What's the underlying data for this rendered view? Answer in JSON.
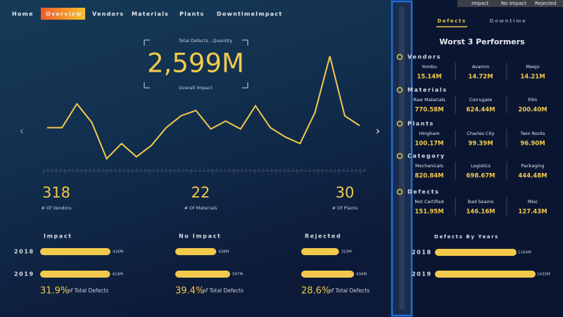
{
  "nav": {
    "tabs": [
      "Home",
      "Overview",
      "Vendors",
      "Materials",
      "Plants",
      "DowntimeImpact"
    ],
    "active": 1
  },
  "filters": [
    "Impact",
    "No Impact",
    "Rejected"
  ],
  "kpi": {
    "label": "Total Defects , Quantity",
    "value": "2,599M",
    "sublabel": "Overall Impact"
  },
  "trend": {
    "type": "line",
    "color": "#f2c94c",
    "values": [
      62,
      62,
      98,
      70,
      15,
      38,
      18,
      35,
      62,
      80,
      88,
      60,
      72,
      60,
      95,
      62,
      48,
      38,
      85,
      170,
      80,
      65
    ]
  },
  "counts": [
    {
      "value": 318,
      "label": "# Of Vendors"
    },
    {
      "value": 22,
      "label": "# Of Materials"
    },
    {
      "value": 30,
      "label": "# Of Plants"
    }
  ],
  "years": [
    "2018",
    "2019"
  ],
  "impact": [
    {
      "title": "Impact",
      "values": [
        416,
        414
      ],
      "value_labels": [
        "416M",
        "414M"
      ],
      "share": "31.9%",
      "share_label": "of Total Defects"
    },
    {
      "title": "No Impact",
      "values": [
        438,
        587
      ],
      "value_labels": [
        "438M",
        "587M"
      ],
      "share": "39.4%",
      "share_label": "of Total Defects"
    },
    {
      "title": "Rejected",
      "values": [
        310,
        434
      ],
      "value_labels": [
        "310M",
        "434M"
      ],
      "share": "28.6%",
      "share_label": "of Total Defects"
    }
  ],
  "right": {
    "tabs": [
      "Defects",
      "Downtime"
    ],
    "title": "Worst 3 Performers",
    "groups": [
      {
        "name": "Vendors",
        "items": [
          {
            "name": "Yombu",
            "value": "15.14M"
          },
          {
            "name": "Avamm",
            "value": "14.72M"
          },
          {
            "name": "Meejo",
            "value": "14.21M"
          }
        ]
      },
      {
        "name": "Materials",
        "items": [
          {
            "name": "Raw Materials",
            "value": "770.58M"
          },
          {
            "name": "Corrugate",
            "value": "624.44M"
          },
          {
            "name": "Film",
            "value": "200.40M"
          }
        ]
      },
      {
        "name": "Plants",
        "items": [
          {
            "name": "Hingham",
            "value": "100.17M"
          },
          {
            "name": "Charles City",
            "value": "99.39M"
          },
          {
            "name": "Twin Rocks",
            "value": "96.90M"
          }
        ]
      },
      {
        "name": "Category",
        "items": [
          {
            "name": "Mechanicals",
            "value": "820.84M"
          },
          {
            "name": "Logistics",
            "value": "698.67M"
          },
          {
            "name": "Packaging",
            "value": "444.48M"
          }
        ]
      },
      {
        "name": "Defects",
        "items": [
          {
            "name": "Not Certified",
            "value": "151.95M"
          },
          {
            "name": "Bad Seams",
            "value": "146.16M"
          },
          {
            "name": "Misc",
            "value": "127.43M"
          }
        ]
      }
    ],
    "years_title": "Defects By Years",
    "years": [
      {
        "year": "2018",
        "value": 1164,
        "value_label": "1164M"
      },
      {
        "year": "2019",
        "value": 1435,
        "value_label": "1435M"
      }
    ]
  }
}
